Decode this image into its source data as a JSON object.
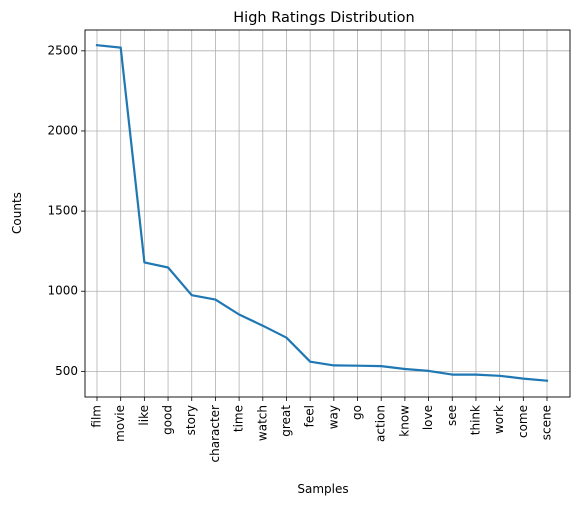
{
  "chart_data": {
    "type": "line",
    "title": "High Ratings Distribution",
    "xlabel": "Samples",
    "ylabel": "Counts",
    "categories": [
      "film",
      "movie",
      "like",
      "good",
      "story",
      "character",
      "time",
      "watch",
      "great",
      "feel",
      "way",
      "go",
      "action",
      "know",
      "love",
      "see",
      "think",
      "work",
      "come",
      "scene"
    ],
    "values": [
      2535,
      2520,
      1180,
      1148,
      975,
      948,
      855,
      785,
      710,
      560,
      537,
      535,
      533,
      515,
      503,
      480,
      480,
      472,
      455,
      442
    ],
    "yticks": [
      500,
      1000,
      1500,
      2000,
      2500
    ],
    "ylim": [
      340,
      2630
    ],
    "grid": true,
    "line_color": "#1f77b4"
  }
}
